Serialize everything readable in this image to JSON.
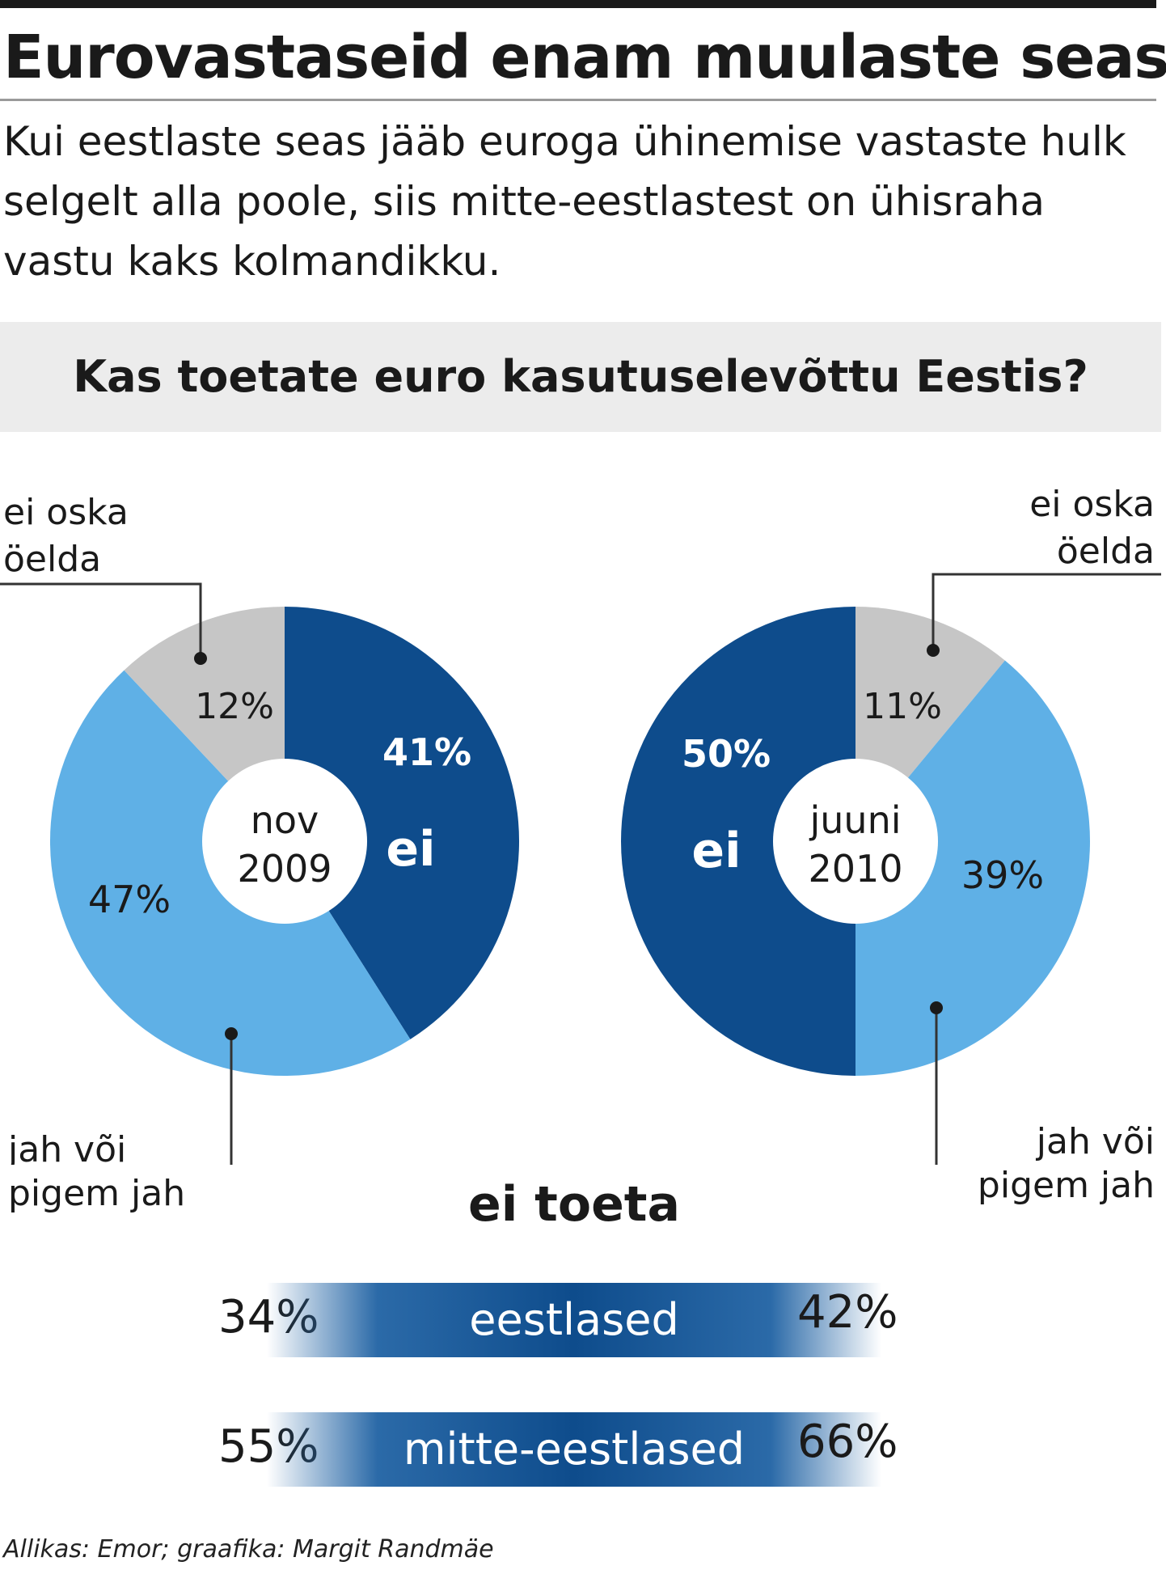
{
  "header": {
    "title": "Eurovastaseid enam muulaste seas",
    "subtitle": "Kui eestlaste seas jääb euroga ühinemise vastaste hulk selgelt alla poole, siis mitte-eestlastest on ühisraha vastu kaks kolmandikku."
  },
  "question": "Kas toetate euro kasutuselevõttu Eestis?",
  "chart_data": [
    {
      "type": "pie",
      "title": "",
      "center_label": [
        "nov",
        "2009"
      ],
      "slices": [
        {
          "label": "ei",
          "value": 41,
          "value_label": "41%",
          "color": "#0e4c8c"
        },
        {
          "label": "jah või pigem jah",
          "value": 47,
          "value_label": "47%",
          "color": "#5fb0e6"
        },
        {
          "label": "ei oska öelda",
          "value": 12,
          "value_label": "12%",
          "color": "#c6c6c6"
        }
      ]
    },
    {
      "type": "pie",
      "title": "",
      "center_label": [
        "juuni",
        "2010"
      ],
      "slices": [
        {
          "label": "ei oska öelda",
          "value": 11,
          "value_label": "11%",
          "color": "#c6c6c6"
        },
        {
          "label": "jah või pigem jah",
          "value": 39,
          "value_label": "39%",
          "color": "#5fb0e6"
        },
        {
          "label": "ei",
          "value": 50,
          "value_label": "50%",
          "color": "#0e4c8c"
        }
      ]
    },
    {
      "type": "table",
      "title": "ei toeta",
      "rows": [
        {
          "group": "eestlased",
          "nov_2009": "34%",
          "juuni_2010": "42%"
        },
        {
          "group": "mitte-eestlased",
          "nov_2009": "55%",
          "juuni_2010": "66%"
        }
      ]
    }
  ],
  "labels": {
    "ei": "ei",
    "ei_oska_line1": "ei oska",
    "ei_oska_line2": "öelda",
    "jah_line1": "jah või",
    "jah_line2": "pigem jah"
  },
  "source": "Allikas: Emor; graafika: Margit Randmäe"
}
